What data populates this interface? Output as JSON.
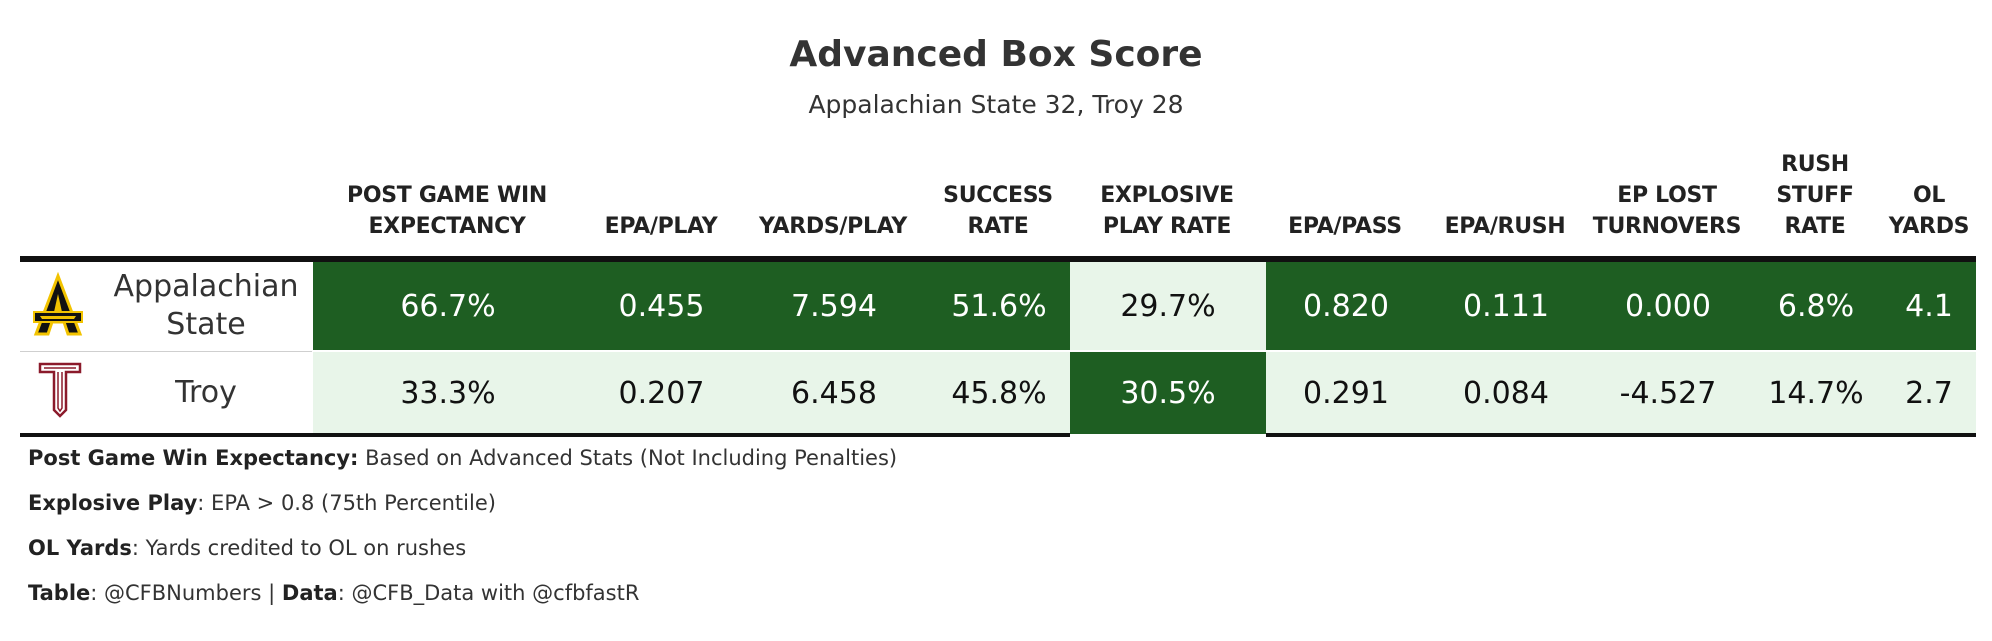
{
  "title": "Advanced Box Score",
  "subtitle": "Appalachian State 32, Troy 28",
  "columns": [
    {
      "line1": "POST GAME WIN",
      "line2": "EXPECTANCY"
    },
    {
      "line1": "",
      "line2": "EPA/PLAY"
    },
    {
      "line1": "",
      "line2": "YARDS/PLAY"
    },
    {
      "line1": "SUCCESS",
      "line2": "RATE"
    },
    {
      "line1": "EXPLOSIVE",
      "line2": "PLAY RATE"
    },
    {
      "line1": "",
      "line2": "EPA/PASS"
    },
    {
      "line1": "",
      "line2": "EPA/RUSH"
    },
    {
      "line1": "EP LOST",
      "line2": "TURNOVERS"
    },
    {
      "line0": "RUSH",
      "line1": "STUFF",
      "line2": "RATE"
    },
    {
      "line1": "OL",
      "line2": "YARDS"
    }
  ],
  "rows": [
    {
      "team_line1": "Appalachian",
      "team_line2": "State",
      "logo": "appalachian-state-logo",
      "values": [
        "66.7%",
        "0.455",
        "7.594",
        "51.6%",
        "29.7%",
        "0.820",
        "0.111",
        "0.000",
        "6.8%",
        "4.1"
      ]
    },
    {
      "team_line1": "Troy",
      "team_line2": "",
      "logo": "troy-logo",
      "values": [
        "33.3%",
        "0.207",
        "6.458",
        "45.8%",
        "30.5%",
        "0.291",
        "0.084",
        "-4.527",
        "14.7%",
        "2.7"
      ]
    }
  ],
  "notes": [
    {
      "label": "Post Game Win Expectancy:",
      "text": " Based on Advanced Stats (Not Including Penalties)"
    },
    {
      "label": "Explosive Play",
      "text": ": EPA > 0.8 (75th Percentile)"
    },
    {
      "label": "OL Yards",
      "text": ": Yards credited to OL on rushes"
    }
  ],
  "credit": {
    "label1": "Table",
    "text1": ": @CFBNumbers | ",
    "label2": "Data",
    "text2": ": @CFB_Data with @cfbfastR"
  },
  "colors": {
    "dark_green": "#1e5e22",
    "light_green": "#e8f5e9",
    "asu_gold": "#f2c300",
    "troy_red": "#8b1a2b"
  }
}
